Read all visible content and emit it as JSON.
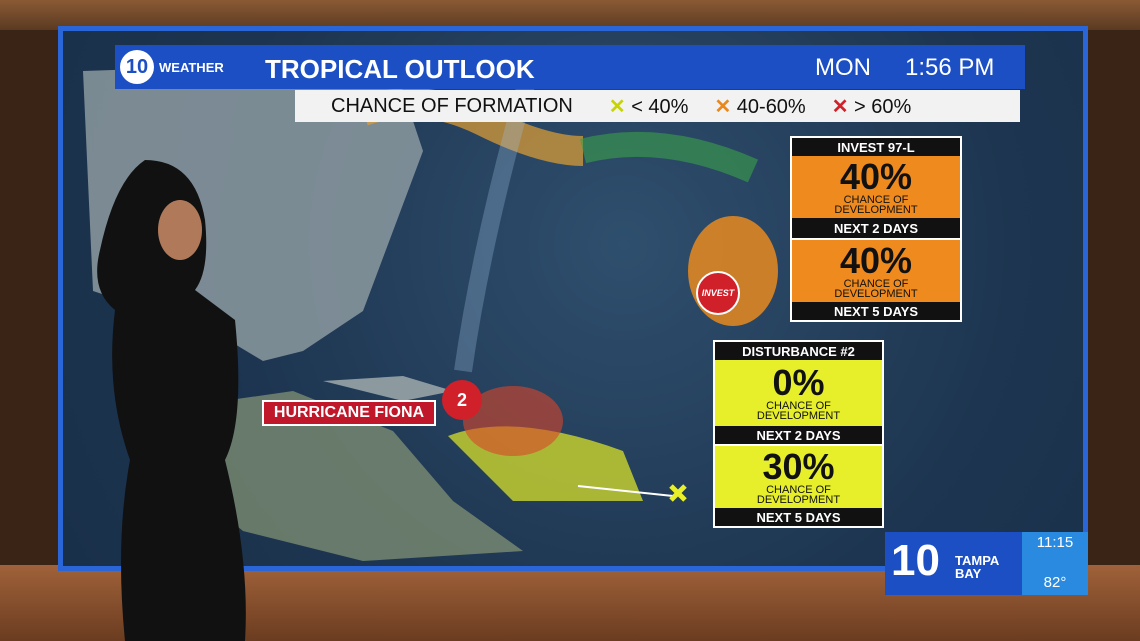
{
  "header": {
    "logo": "10",
    "logo_text": "WEATHER",
    "title": "TROPICAL OUTLOOK",
    "day": "MON",
    "time": "1:56 PM"
  },
  "legend": {
    "title": "CHANCE OF FORMATION",
    "low": "< 40%",
    "mid": "40-60%",
    "high": "> 60%"
  },
  "invest_box": {
    "title": "INVEST 97-L",
    "panels": [
      {
        "percent": "40%",
        "caption": "CHANCE OF DEVELOPMENT",
        "period": "NEXT 2 DAYS"
      },
      {
        "percent": "40%",
        "caption": "CHANCE OF DEVELOPMENT",
        "period": "NEXT 5 DAYS"
      }
    ]
  },
  "disturbance_box": {
    "title": "DISTURBANCE #2",
    "panels": [
      {
        "percent": "0%",
        "caption": "CHANCE OF DEVELOPMENT",
        "period": "NEXT 2 DAYS"
      },
      {
        "percent": "30%",
        "caption": "CHANCE OF DEVELOPMENT",
        "period": "NEXT 5 DAYS"
      }
    ]
  },
  "map_labels": {
    "invest": "INVEST",
    "storm_number": "2",
    "hurricane": "HURRICANE FIONA"
  },
  "bug": {
    "logo": "10",
    "station": "TAMPA BAY",
    "time": "11:15",
    "temperature": "82°"
  }
}
